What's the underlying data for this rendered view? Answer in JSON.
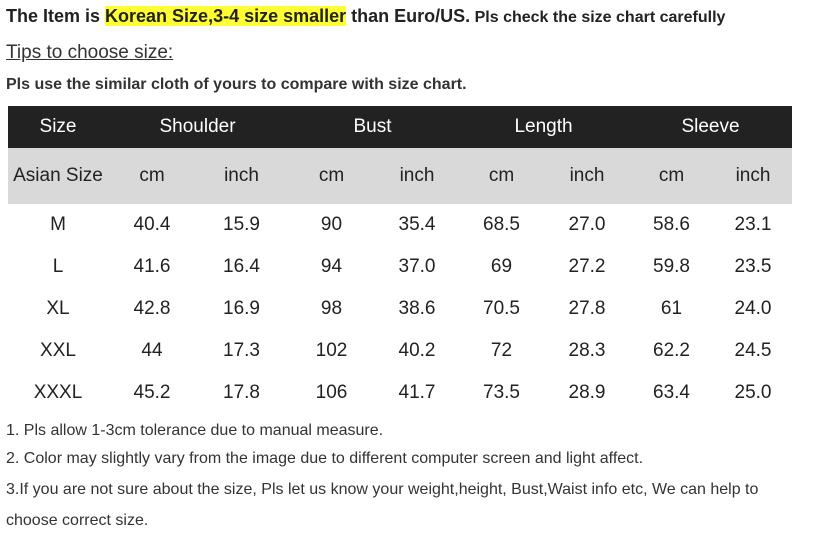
{
  "header": {
    "line": [
      {
        "text": "The Item is "
      },
      {
        "text": "Korean Size,3-4 size smaller"
      },
      {
        "text": " than Euro/US."
      },
      {
        "text": " Pls check the size chart carefully"
      }
    ],
    "tips": "Tips to choose size:",
    "instruction": "Pls use the similar cloth of yours to compare with size chart."
  },
  "table": {
    "first_header": "Size",
    "groups": [
      "Shoulder",
      "Bust",
      "Length",
      "Sleeve"
    ],
    "subheader": [
      "Asian Size",
      "cm",
      "inch",
      "cm",
      "inch",
      "cm",
      "inch",
      "cm",
      "inch"
    ],
    "rows": [
      [
        "M",
        "40.4",
        "15.9",
        "90",
        "35.4",
        "68.5",
        "27.0",
        "58.6",
        "23.1"
      ],
      [
        "L",
        "41.6",
        "16.4",
        "94",
        "37.0",
        "69",
        "27.2",
        "59.8",
        "23.5"
      ],
      [
        "XL",
        "42.8",
        "16.9",
        "98",
        "38.6",
        "70.5",
        "27.8",
        "61",
        "24.0"
      ],
      [
        "XXL",
        "44",
        "17.3",
        "102",
        "40.2",
        "72",
        "28.3",
        "62.2",
        "24.5"
      ],
      [
        "XXXL",
        "45.2",
        "17.8",
        "106",
        "41.7",
        "73.5",
        "28.9",
        "63.4",
        "25.0"
      ]
    ]
  },
  "notes": [
    "1. Pls allow 1-3cm tolerance due to manual measure.",
    "2. Color may slightly vary from the image due to different computer screen and light affect.",
    "3.If you are not sure about the size, Pls let us know your weight,height, Bust,Waist info etc, We can help to choose correct size."
  ]
}
